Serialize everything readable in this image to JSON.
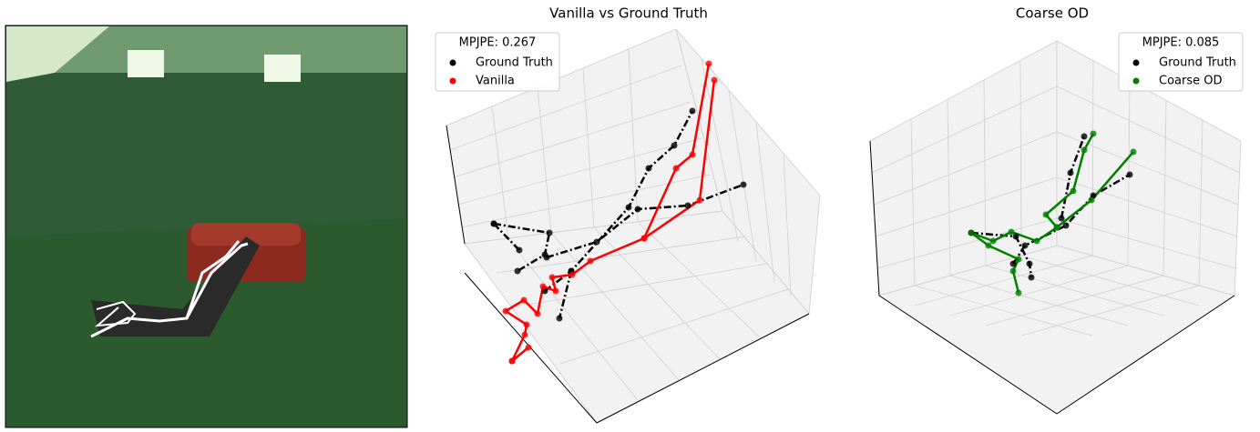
{
  "chart_data": [
    {
      "type": "line3d",
      "title": "Vanilla vs Ground Truth",
      "legend_title": "MPJPE: 0.267",
      "series": [
        {
          "name": "Ground Truth",
          "color": "#000000"
        },
        {
          "name": "Vanilla",
          "color": "#ff0000"
        }
      ]
    },
    {
      "type": "line3d",
      "title": "Coarse OD",
      "legend_title": "MPJPE: 0.085",
      "series": [
        {
          "name": "Ground Truth",
          "color": "#000000"
        },
        {
          "name": "Coarse OD",
          "color": "#008000"
        }
      ]
    }
  ]
}
